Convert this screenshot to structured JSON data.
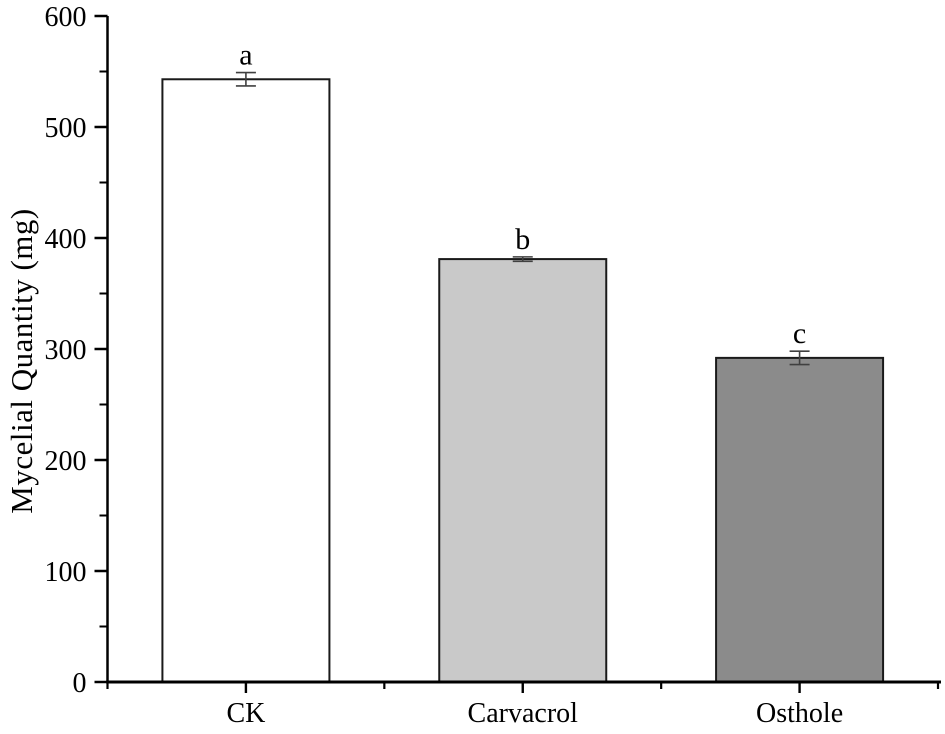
{
  "figure": {
    "background": "#ffffff",
    "axis_color": "#000000",
    "error_bar_color": "#404040"
  },
  "chart_data": {
    "type": "bar",
    "title": "",
    "xlabel": "",
    "ylabel": "Mycelial Quantity (mg)",
    "categories": [
      "CK",
      "Carvacrol",
      "Osthole"
    ],
    "values": [
      543,
      381,
      292
    ],
    "error_bars": [
      6,
      2,
      6
    ],
    "sig_letters": [
      "a",
      "b",
      "c"
    ],
    "bar_fill_colors": [
      "#ffffff",
      "#c9c9c9",
      "#8b8b8b"
    ],
    "bar_edge_color": "#1a1a1a",
    "ylim": [
      0,
      600
    ],
    "ytick_major": 100,
    "ytick_minor": 50,
    "ytick_labels": [
      "0",
      "100",
      "200",
      "300",
      "400",
      "500",
      "600"
    ],
    "grid": false,
    "legend": false
  }
}
